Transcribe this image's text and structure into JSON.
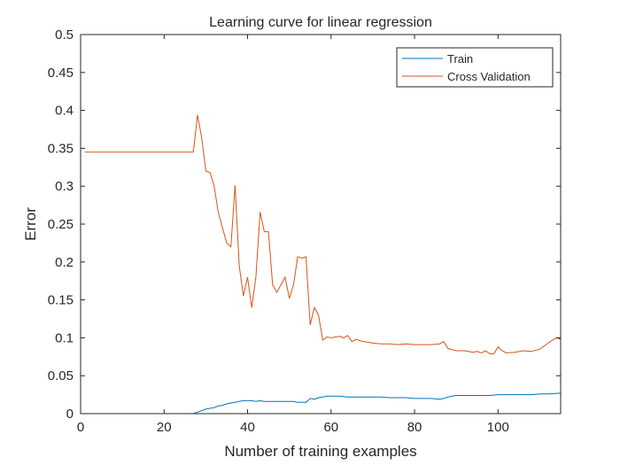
{
  "chart_data": {
    "type": "line",
    "title": "Learning curve for linear regression",
    "xlabel": "Number of training examples",
    "ylabel": "Error",
    "xlim": [
      0,
      115
    ],
    "ylim": [
      0,
      0.5
    ],
    "xticks": [
      0,
      20,
      40,
      60,
      80,
      100
    ],
    "yticks": [
      0,
      0.05,
      0.1,
      0.15,
      0.2,
      0.25,
      0.3,
      0.35,
      0.4,
      0.45,
      0.5
    ],
    "grid": false,
    "legend_position": "top-right",
    "series": [
      {
        "name": "Train",
        "color": "#0072BD",
        "x": [
          1,
          5,
          10,
          15,
          20,
          25,
          27,
          28,
          29,
          30,
          31,
          32,
          33,
          34,
          35,
          36,
          37,
          38,
          39,
          40,
          41,
          42,
          43,
          44,
          45,
          46,
          47,
          48,
          49,
          50,
          51,
          52,
          53,
          54,
          55,
          56,
          57,
          58,
          59,
          60,
          62,
          64,
          66,
          68,
          70,
          72,
          74,
          76,
          78,
          80,
          82,
          84,
          86,
          87,
          88,
          89,
          90,
          92,
          94,
          96,
          98,
          100,
          102,
          104,
          106,
          108,
          110,
          112,
          115
        ],
        "y": [
          0,
          0,
          0,
          0,
          0,
          0,
          0,
          0.002,
          0.004,
          0.006,
          0.007,
          0.008,
          0.01,
          0.011,
          0.013,
          0.014,
          0.015,
          0.016,
          0.017,
          0.017,
          0.017,
          0.016,
          0.017,
          0.016,
          0.016,
          0.016,
          0.016,
          0.016,
          0.016,
          0.016,
          0.016,
          0.015,
          0.015,
          0.015,
          0.02,
          0.019,
          0.021,
          0.022,
          0.023,
          0.023,
          0.023,
          0.022,
          0.022,
          0.022,
          0.022,
          0.022,
          0.021,
          0.021,
          0.021,
          0.02,
          0.02,
          0.02,
          0.019,
          0.02,
          0.022,
          0.023,
          0.024,
          0.024,
          0.024,
          0.024,
          0.024,
          0.025,
          0.025,
          0.025,
          0.025,
          0.025,
          0.026,
          0.026,
          0.027
        ]
      },
      {
        "name": "Cross Validation",
        "color": "#D95319",
        "x": [
          1,
          5,
          10,
          15,
          20,
          25,
          27,
          28,
          29,
          30,
          31,
          32,
          33,
          34,
          35,
          36,
          37,
          38,
          39,
          40,
          41,
          42,
          43,
          44,
          45,
          46,
          47,
          48,
          49,
          50,
          51,
          52,
          53,
          54,
          55,
          56,
          57,
          58,
          59,
          60,
          61,
          62,
          63,
          64,
          65,
          66,
          67,
          68,
          70,
          72,
          74,
          76,
          78,
          80,
          82,
          84,
          86,
          87,
          88,
          90,
          92,
          94,
          95,
          96,
          97,
          98,
          99,
          100,
          101,
          102,
          104,
          106,
          108,
          110,
          112,
          113,
          114,
          115
        ],
        "y": [
          0.345,
          0.345,
          0.345,
          0.345,
          0.345,
          0.345,
          0.345,
          0.394,
          0.364,
          0.32,
          0.318,
          0.3,
          0.265,
          0.245,
          0.225,
          0.22,
          0.301,
          0.195,
          0.155,
          0.18,
          0.14,
          0.18,
          0.266,
          0.24,
          0.24,
          0.17,
          0.16,
          0.17,
          0.18,
          0.152,
          0.17,
          0.207,
          0.205,
          0.207,
          0.117,
          0.14,
          0.13,
          0.097,
          0.101,
          0.1,
          0.101,
          0.102,
          0.1,
          0.103,
          0.095,
          0.098,
          0.096,
          0.095,
          0.093,
          0.092,
          0.092,
          0.091,
          0.092,
          0.091,
          0.091,
          0.091,
          0.092,
          0.095,
          0.086,
          0.083,
          0.083,
          0.081,
          0.082,
          0.08,
          0.083,
          0.079,
          0.079,
          0.088,
          0.083,
          0.08,
          0.081,
          0.083,
          0.082,
          0.085,
          0.093,
          0.097,
          0.1,
          0.098
        ]
      }
    ]
  }
}
